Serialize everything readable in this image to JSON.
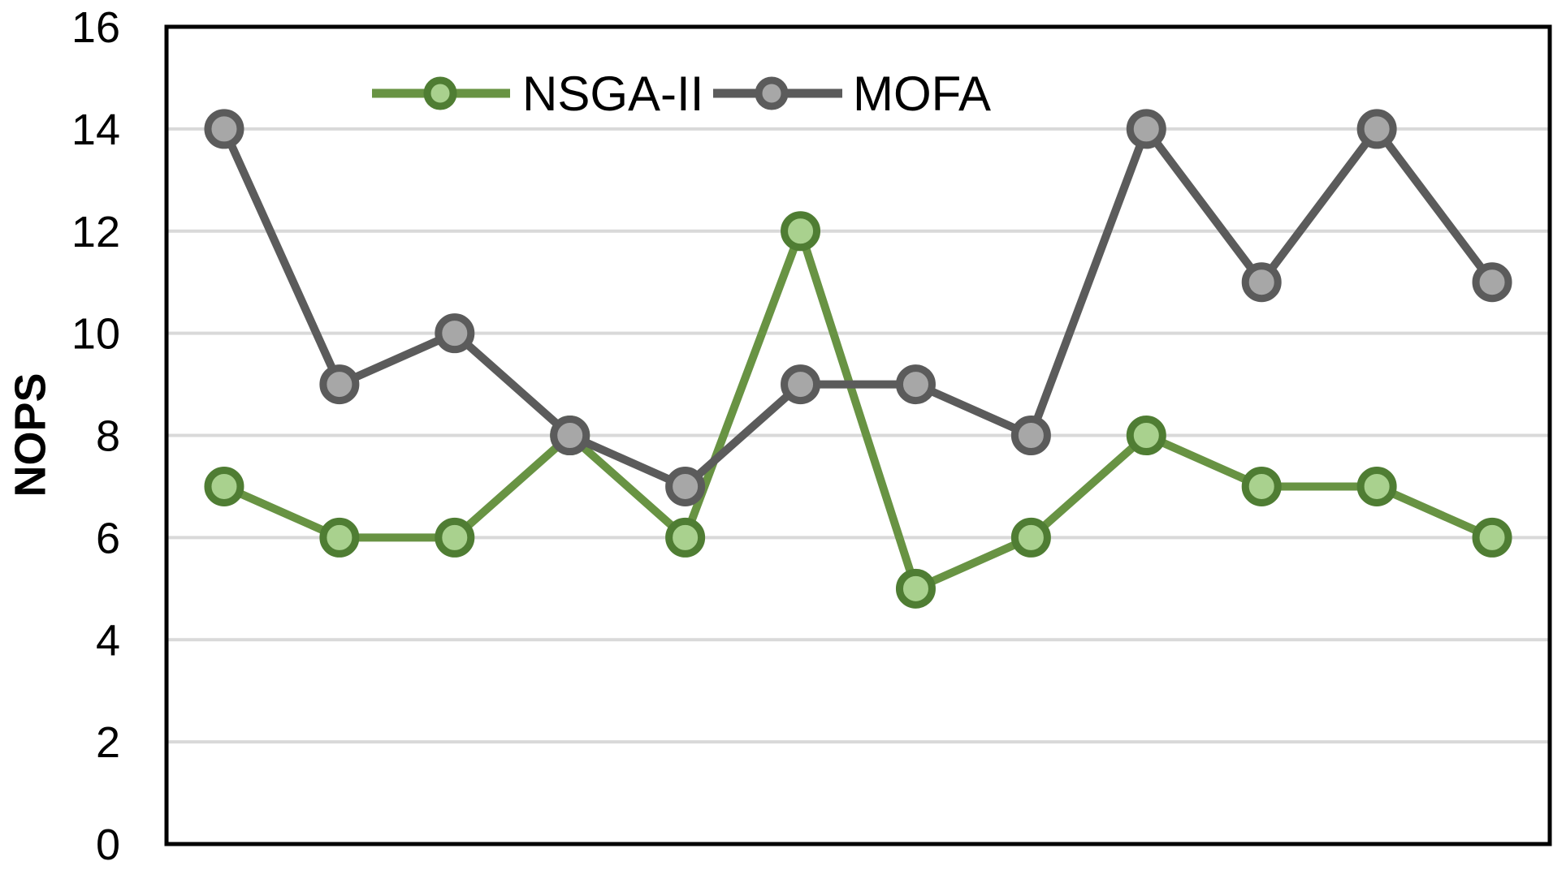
{
  "chart_data": {
    "type": "line",
    "title": "",
    "xlabel": "",
    "ylabel": "NOPS",
    "x_axis_labels": "none",
    "x": [
      1,
      2,
      3,
      4,
      5,
      6,
      7,
      8,
      9,
      10,
      11,
      12
    ],
    "series": [
      {
        "name": "NSGA-II",
        "values": [
          7,
          6,
          6,
          8,
          6,
          12,
          5,
          6,
          8,
          7,
          7,
          6
        ],
        "line_color": "#689343",
        "marker_fill": "#A9D18E",
        "marker_border": "#4F7D33"
      },
      {
        "name": "MOFA",
        "values": [
          14,
          9,
          10,
          8,
          7,
          9,
          9,
          8,
          14,
          11,
          14,
          11
        ],
        "line_color": "#5B5B5B",
        "marker_fill": "#A7A7A7",
        "marker_border": "#5B5B5B"
      }
    ],
    "ylim": [
      0,
      16
    ],
    "yticks": [
      0,
      2,
      4,
      6,
      8,
      10,
      12,
      14,
      16
    ],
    "ytick_labels": [
      "0",
      "2",
      "4",
      "6",
      "8",
      "10",
      "12",
      "14",
      "16"
    ],
    "grid": "horizontal",
    "gridline_color": "#D9D9D9",
    "axis_border_color": "#000000",
    "legend_position": "top-center",
    "legend_order": [
      "NSGA-II",
      "MOFA"
    ]
  }
}
